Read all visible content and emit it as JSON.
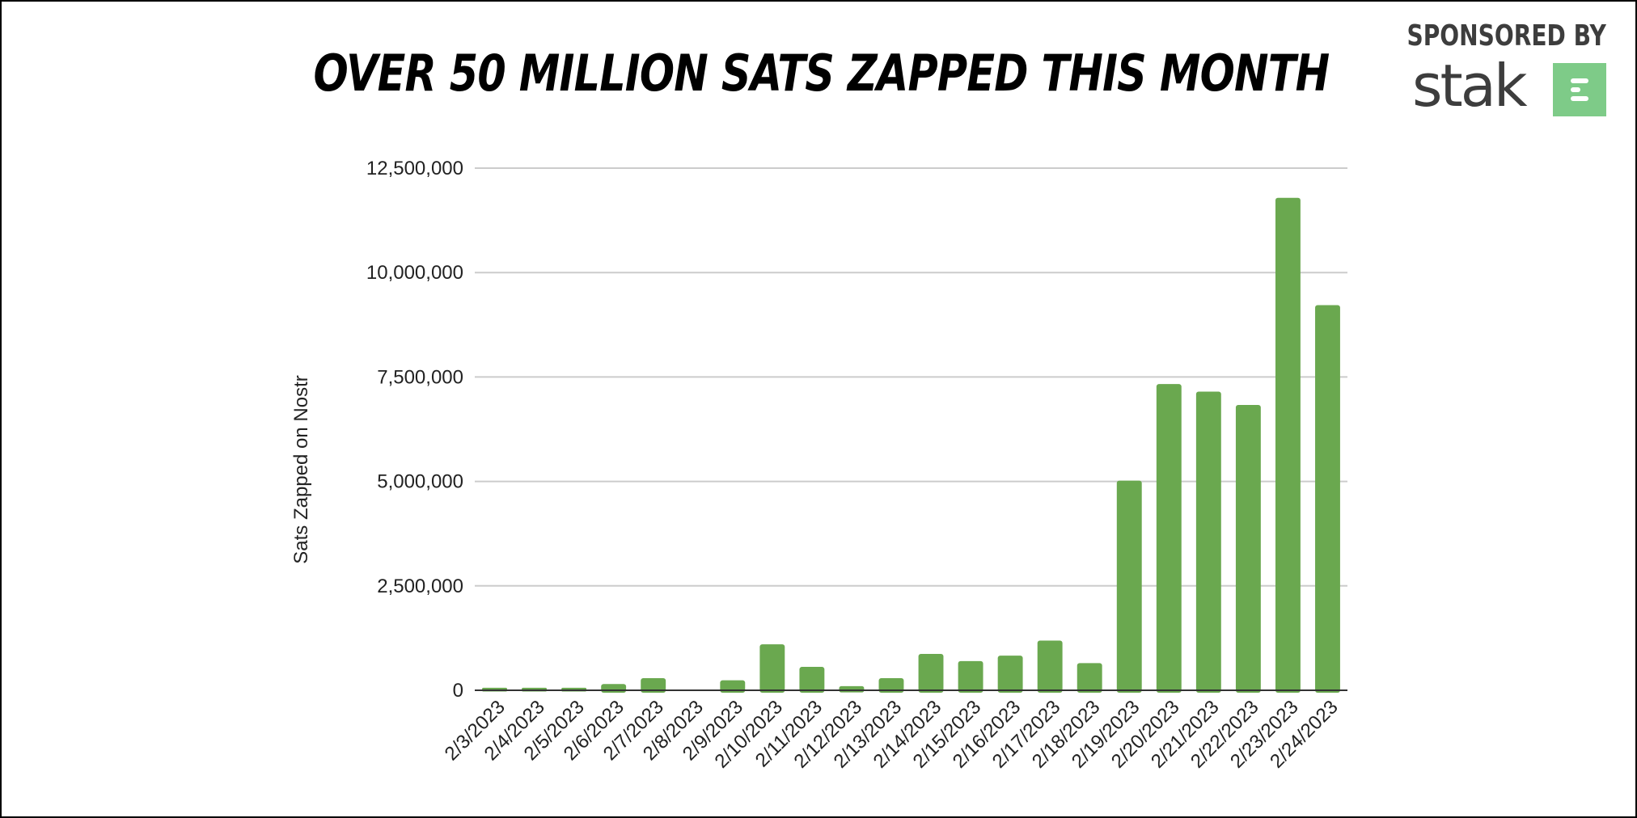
{
  "header": {
    "title": "OVER 50 MILLION SATS ZAPPED THIS MONTH"
  },
  "sponsor": {
    "label": "SPONSORED BY",
    "brand": "stak",
    "logo_icon": "stak-logo-icon",
    "logo_color": "#7ecb88",
    "text_color": "#3d3d3d"
  },
  "colors": {
    "bar": "#6aa84f",
    "grid": "#cccccc",
    "axis": "#333333",
    "text": "#222222"
  },
  "chart_data": {
    "type": "bar",
    "title": "OVER 50 MILLION SATS ZAPPED THIS MONTH",
    "xlabel": "",
    "ylabel": "Sats Zapped on Nostr",
    "ylim": [
      0,
      12500000
    ],
    "yticks": [
      0,
      2500000,
      5000000,
      7500000,
      10000000,
      12500000
    ],
    "ytick_labels": [
      "0",
      "2,500,000",
      "5,000,000",
      "7,500,000",
      "10,000,000",
      "12,500,000"
    ],
    "grid": true,
    "legend": "none",
    "categories": [
      "2/3/2023",
      "2/4/2023",
      "2/5/2023",
      "2/6/2023",
      "2/7/2023",
      "2/8/2023",
      "2/9/2023",
      "2/10/2023",
      "2/11/2023",
      "2/12/2023",
      "2/13/2023",
      "2/14/2023",
      "2/15/2023",
      "2/16/2023",
      "2/17/2023",
      "2/18/2023",
      "2/19/2023",
      "2/20/2023",
      "2/21/2023",
      "2/22/2023",
      "2/23/2023",
      "2/24/2023"
    ],
    "series": [
      {
        "name": "Sats Zapped on Nostr",
        "values": [
          60000,
          60000,
          60000,
          150000,
          290000,
          15000,
          240000,
          1100000,
          560000,
          100000,
          290000,
          870000,
          700000,
          830000,
          1190000,
          650000,
          5020000,
          7330000,
          7150000,
          6830000,
          11790000,
          9220000
        ]
      }
    ]
  }
}
